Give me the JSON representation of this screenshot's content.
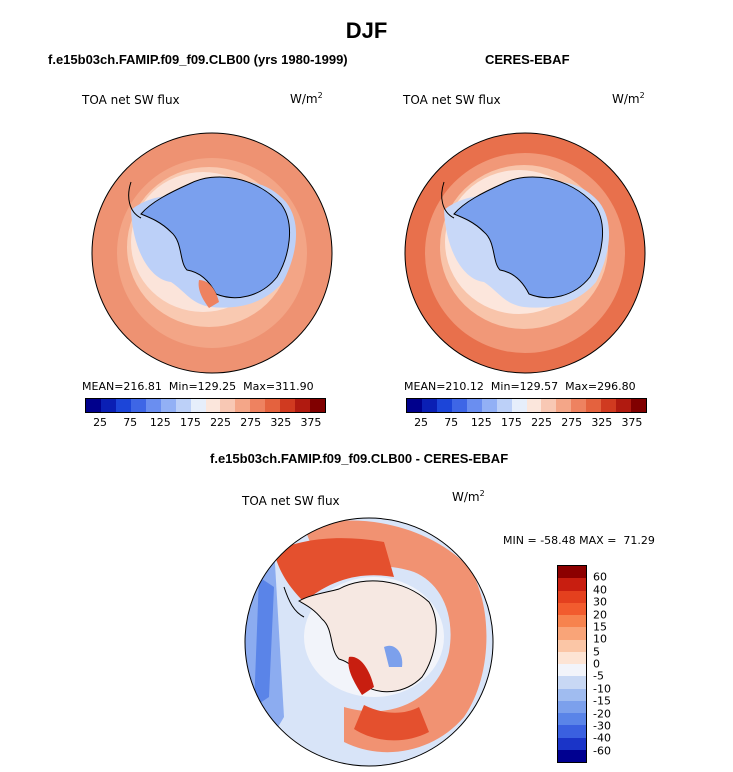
{
  "title": "DJF",
  "chart_data": [
    {
      "type": "heatmap",
      "panel_title": "f.e15b03ch.FAMIP.f09_f09.CLB00 (yrs 1980-1999)",
      "variable": "TOA net SW flux",
      "units": "W/m2",
      "stats": {
        "mean_label": "MEAN=",
        "mean": "216.81",
        "min_label": "Min=",
        "min": "129.25",
        "max_label": "Max=",
        "max": "311.90"
      },
      "colorbar_ticks": [
        "25",
        "75",
        "125",
        "175",
        "225",
        "275",
        "325",
        "375"
      ],
      "colorbar_colors": [
        "#00008c",
        "#0a1fb4",
        "#1c45d8",
        "#3e66e6",
        "#6a8ef0",
        "#92b0f5",
        "#bcd0f8",
        "#e6eefb",
        "#fbe6dc",
        "#f8c8b4",
        "#f4a688",
        "#ee8260",
        "#e4623e",
        "#d03a20",
        "#b01a10",
        "#800000"
      ]
    },
    {
      "type": "heatmap",
      "panel_title": "CERES-EBAF",
      "variable": "TOA net SW flux",
      "units": "W/m2",
      "stats": {
        "mean_label": "MEAN=",
        "mean": "210.12",
        "min_label": "Min=",
        "min": "129.57",
        "max_label": "Max=",
        "max": "296.80"
      },
      "colorbar_ticks": [
        "25",
        "75",
        "125",
        "175",
        "225",
        "275",
        "325",
        "375"
      ],
      "colorbar_colors": [
        "#00008c",
        "#0a1fb4",
        "#1c45d8",
        "#3e66e6",
        "#6a8ef0",
        "#92b0f5",
        "#bcd0f8",
        "#e6eefb",
        "#fbe6dc",
        "#f8c8b4",
        "#f4a688",
        "#ee8260",
        "#e4623e",
        "#d03a20",
        "#b01a10",
        "#800000"
      ]
    },
    {
      "type": "heatmap",
      "panel_title": "f.e15b03ch.FAMIP.f09_f09.CLB00 - CERES-EBAF",
      "variable": "TOA net SW flux",
      "units": "W/m2",
      "stats": {
        "min_label": "MIN =",
        "min": "-58.48",
        "max_label": "MAX =",
        "max": "71.29"
      },
      "colorbar_ticks": [
        "60",
        "40",
        "30",
        "20",
        "15",
        "10",
        "5",
        "0",
        "-5",
        "-10",
        "-15",
        "-20",
        "-30",
        "-40",
        "-60"
      ],
      "colorbar_colors": [
        "#8c0000",
        "#c81e10",
        "#e4401e",
        "#f25c2e",
        "#f7834e",
        "#f9a478",
        "#fbc6a6",
        "#fde4d4",
        "#f2f4fa",
        "#c8d8f4",
        "#a0bcf0",
        "#7ca0ec",
        "#5a84e8",
        "#3a60e0",
        "#1a34c8",
        "#000090"
      ]
    }
  ]
}
